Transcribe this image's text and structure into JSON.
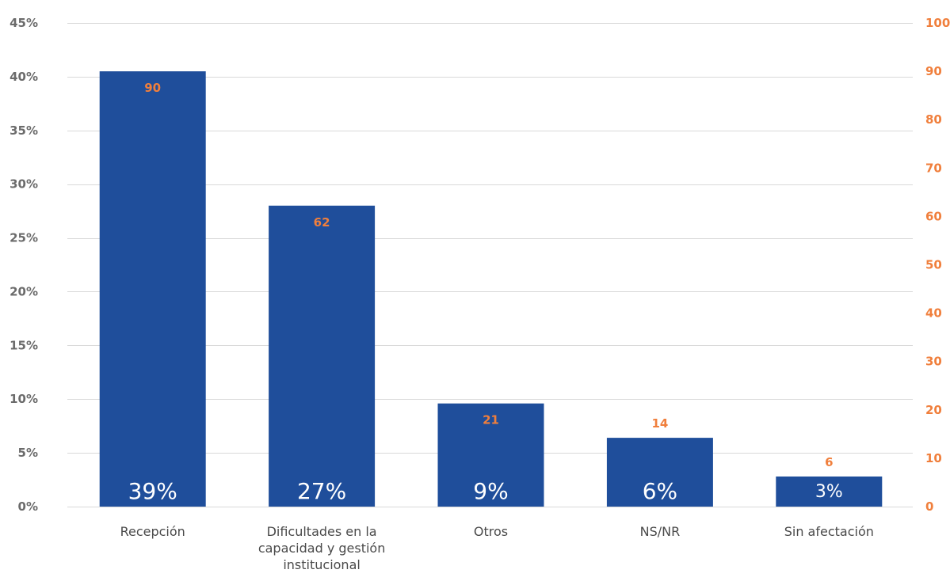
{
  "chart_data": {
    "type": "bar",
    "categories": [
      [
        "Recepción"
      ],
      [
        "Dificultades en la",
        "capacidad y gestión",
        "institucional"
      ],
      [
        "Otros"
      ],
      [
        "NS/NR"
      ],
      [
        "Sin afectación"
      ]
    ],
    "values": [
      40.5,
      28,
      9.6,
      6.4,
      2.8
    ],
    "percent_labels": [
      "39%",
      "27%",
      "9%",
      "6%",
      "3%"
    ],
    "count_labels": [
      "90",
      "62",
      "21",
      "14",
      "6"
    ],
    "y_left": {
      "lim": [
        0,
        45
      ],
      "ticks": [
        0,
        5,
        10,
        15,
        20,
        25,
        30,
        35,
        40,
        45
      ],
      "tick_labels": [
        "0%",
        "5%",
        "10%",
        "15%",
        "20%",
        "25%",
        "30%",
        "35%",
        "40%",
        "45%"
      ]
    },
    "y_right": {
      "lim": [
        0,
        100
      ],
      "ticks": [
        0,
        10,
        20,
        30,
        40,
        50,
        60,
        70,
        80,
        90,
        100
      ],
      "tick_labels": [
        "0",
        "10",
        "20",
        "30",
        "40",
        "50",
        "60",
        "70",
        "80",
        "90",
        "100"
      ]
    },
    "title": "",
    "xlabel": "",
    "ylabel": "",
    "grid": true,
    "colors": {
      "bar": "#1f4e9b",
      "right_axis": "#f07f3c",
      "left_axis": "#6b6b6b",
      "grid": "#d9d9d9",
      "category": "#4a4a4a",
      "bar_label": "#ffffff"
    }
  }
}
